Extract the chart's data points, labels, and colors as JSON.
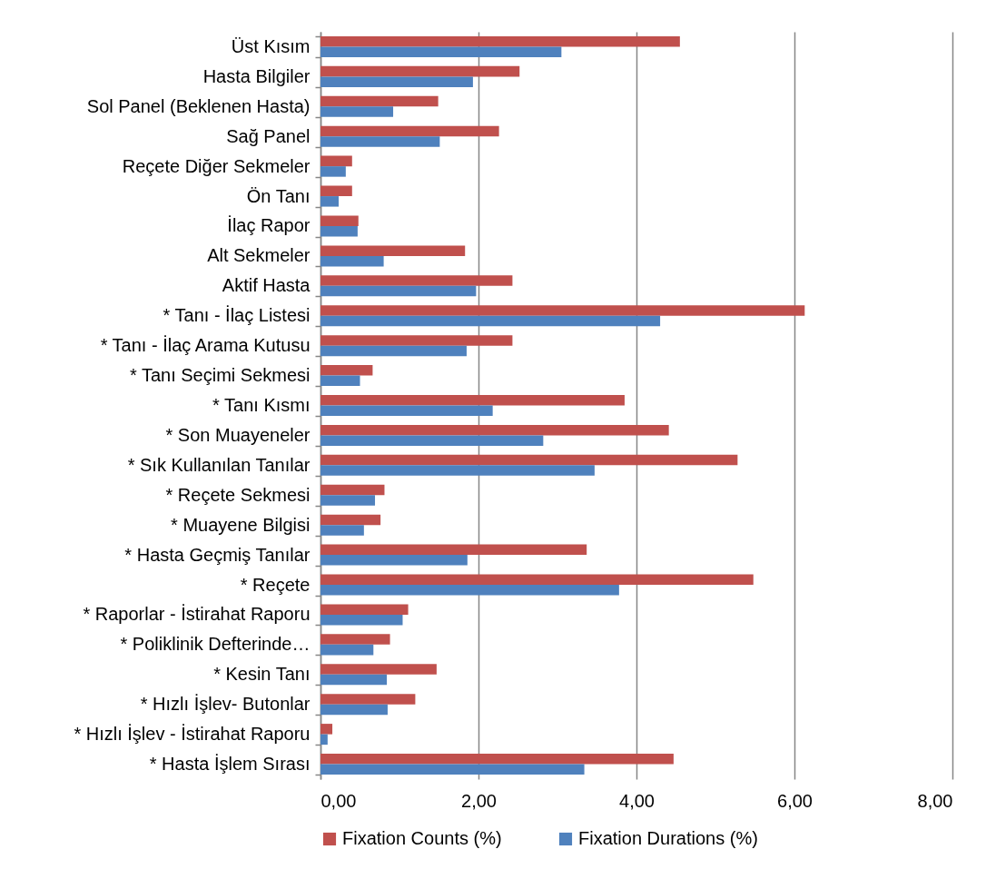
{
  "chart_data": {
    "type": "bar",
    "orientation": "horizontal",
    "categories": [
      "Üst Kısım",
      "Hasta Bilgiler",
      "Sol Panel (Beklenen Hasta)",
      "Sağ Panel",
      "Reçete Diğer Sekmeler",
      "Ön Tanı",
      "İlaç Rapor",
      "Alt Sekmeler",
      "Aktif Hasta",
      "* Tanı - İlaç Listesi",
      "* Tanı - İlaç Arama Kutusu",
      "* Tanı Seçimi Sekmesi",
      "* Tanı Kısmı",
      "* Son Muayeneler",
      "* Sık Kullanılan Tanılar",
      "* Reçete Sekmesi",
      "* Muayene Bilgisi",
      "* Hasta Geçmiş Tanılar",
      "* Reçete",
      "* Raporlar - İstirahat Raporu",
      "* Poliklinik Defterinde…",
      "* Kesin Tanı",
      "* Hızlı İşlev- Butonlar",
      "* Hızlı İşlev - İstirahat Raporu",
      "* Hasta İşlem Sırası"
    ],
    "series": [
      {
        "name": "Fixation Counts (%)",
        "color": "#c0504d",
        "values": [
          4.55,
          2.52,
          1.49,
          2.26,
          0.4,
          0.4,
          0.48,
          1.83,
          2.43,
          6.13,
          2.43,
          0.66,
          3.85,
          4.41,
          5.28,
          0.81,
          0.76,
          3.37,
          5.48,
          1.11,
          0.88,
          1.47,
          1.2,
          0.15,
          4.47
        ]
      },
      {
        "name": "Fixation Durations (%)",
        "color": "#4f81bd",
        "values": [
          3.05,
          1.93,
          0.92,
          1.51,
          0.32,
          0.23,
          0.47,
          0.8,
          1.97,
          4.3,
          1.85,
          0.5,
          2.18,
          2.82,
          3.47,
          0.69,
          0.55,
          1.86,
          3.78,
          1.04,
          0.67,
          0.84,
          0.85,
          0.09,
          3.34
        ]
      }
    ],
    "xlim": [
      0,
      8
    ],
    "xticks": [
      {
        "value": 0,
        "label": "0,00"
      },
      {
        "value": 2,
        "label": "2,00"
      },
      {
        "value": 4,
        "label": "4,00"
      },
      {
        "value": 6,
        "label": "6,00"
      },
      {
        "value": 8,
        "label": "8,00"
      }
    ],
    "grid": "x",
    "legend": "bottom"
  }
}
